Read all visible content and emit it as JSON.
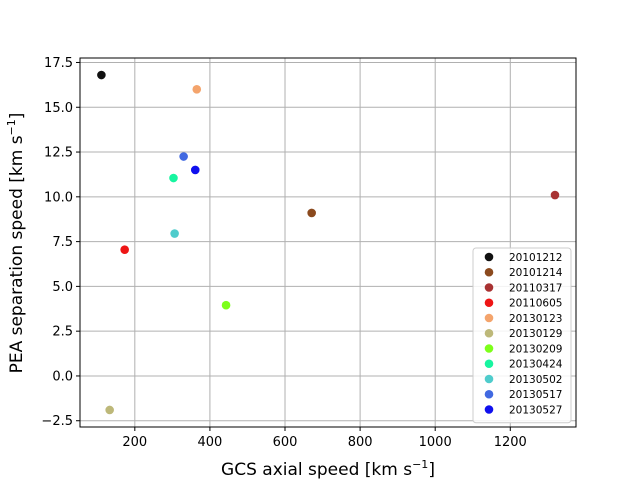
{
  "chart_data": {
    "type": "scatter",
    "title": "",
    "xlabel": "GCS axial speed [km s",
    "xlabel_sup": "−1",
    "xlabel_end": "]",
    "ylabel": "PEA separation speed [km s",
    "ylabel_sup": "−1",
    "ylabel_end": "]",
    "xlim": [
      54,
      1375
    ],
    "ylim": [
      -2.85,
      17.75
    ],
    "xticks": [
      200,
      400,
      600,
      800,
      1000,
      1200
    ],
    "xtick_labels": [
      "200",
      "400",
      "600",
      "800",
      "1000",
      "1200"
    ],
    "yticks": [
      -2.5,
      0.0,
      2.5,
      5.0,
      7.5,
      10.0,
      12.5,
      15.0,
      17.5
    ],
    "ytick_labels": [
      "−2.5",
      "0.0",
      "2.5",
      "5.0",
      "7.5",
      "10.0",
      "12.5",
      "15.0",
      "17.5"
    ],
    "grid": true,
    "legend_position": "lower-right",
    "series": [
      {
        "name": "20101212",
        "color": "#111111",
        "x": 111,
        "y": 16.8
      },
      {
        "name": "20101214",
        "color": "#8b4a1e",
        "x": 671,
        "y": 9.1
      },
      {
        "name": "20110317",
        "color": "#a83232",
        "x": 1319,
        "y": 10.1
      },
      {
        "name": "20110605",
        "color": "#ee1515",
        "x": 173,
        "y": 7.05
      },
      {
        "name": "20130123",
        "color": "#f4a46c",
        "x": 365,
        "y": 16.0
      },
      {
        "name": "20130129",
        "color": "#bdb879",
        "x": 133,
        "y": -1.9
      },
      {
        "name": "20130209",
        "color": "#7dff1a",
        "x": 443,
        "y": 3.95
      },
      {
        "name": "20130424",
        "color": "#17f5a0",
        "x": 303,
        "y": 11.05
      },
      {
        "name": "20130502",
        "color": "#4fcccc",
        "x": 306,
        "y": 7.95
      },
      {
        "name": "20130517",
        "color": "#4169e1",
        "x": 330,
        "y": 12.25
      },
      {
        "name": "20130527",
        "color": "#1010ee",
        "x": 361,
        "y": 11.5
      }
    ]
  }
}
